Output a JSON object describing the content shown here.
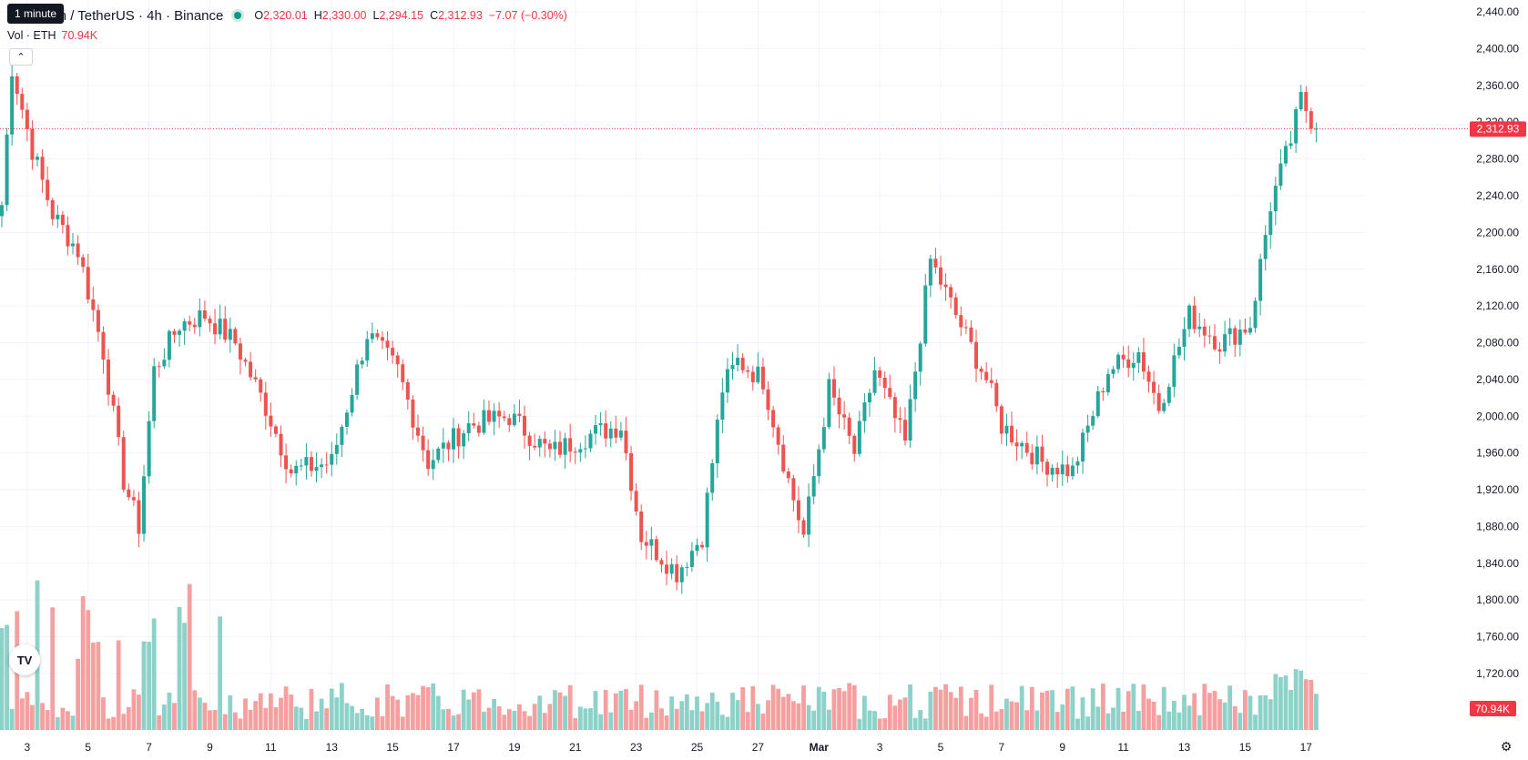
{
  "legend": {
    "tooltip": "1 minute",
    "symbol": "Ethereum / TetherUS · 4h · Binance",
    "status_color": "#089981",
    "open_label": "O",
    "open": "2,320.01",
    "high_label": "H",
    "high": "2,330.00",
    "low_label": "L",
    "low": "2,294.15",
    "close_label": "C",
    "close": "2,312.93",
    "change": "−7.07 (−0.30%)"
  },
  "volume_legend": {
    "label": "Vol · ETH",
    "value": "70.94K"
  },
  "price_badge": "2,312.93",
  "volume_badge": "70.94K",
  "icons": {
    "collapse": "chevron-up-icon",
    "logo": "tradingview-logo",
    "settings": "settings-icon"
  },
  "colors": {
    "up": "#26a69a",
    "down": "#ef5350",
    "vol_up": "#8ed1c8",
    "vol_down": "#f5a0a0",
    "last_price": "#f23645"
  },
  "chart_data": {
    "type": "candlestick",
    "symbol": "Ethereum / TetherUS",
    "interval": "4h",
    "exchange": "Binance",
    "y_axis": {
      "ticks": [
        "2,440.00",
        "2,400.00",
        "2,360.00",
        "2,320.00",
        "2,280.00",
        "2,240.00",
        "2,200.00",
        "2,160.00",
        "2,120.00",
        "2,080.00",
        "2,040.00",
        "2,000.00",
        "1,960.00",
        "1,920.00",
        "1,880.00",
        "1,840.00",
        "1,800.00",
        "1,760.00",
        "1,720.00"
      ],
      "tick_values": [
        2440,
        2400,
        2360,
        2320,
        2280,
        2240,
        2200,
        2160,
        2120,
        2080,
        2040,
        2000,
        1960,
        1920,
        1880,
        1840,
        1800,
        1760,
        1720
      ],
      "range": [
        1708,
        2453
      ],
      "last_price": 2312.93
    },
    "x_axis": {
      "labels": [
        "3",
        "5",
        "7",
        "9",
        "11",
        "13",
        "15",
        "17",
        "19",
        "21",
        "23",
        "25",
        "27",
        "Mar",
        "3",
        "5",
        "7",
        "9",
        "11",
        "13",
        "15",
        "17"
      ],
      "label_index": [
        5,
        17,
        29,
        41,
        53,
        65,
        77,
        89,
        101,
        113,
        125,
        137,
        149,
        161,
        173,
        185,
        197,
        209,
        221,
        233,
        245,
        257
      ]
    },
    "key_prices": [
      {
        "day_index": 0,
        "close": 2230
      },
      {
        "day_index": 2,
        "close": 2380
      },
      {
        "day_index": 6,
        "close": 2290
      },
      {
        "day_index": 10,
        "close": 2220
      },
      {
        "day_index": 15,
        "close": 2180
      },
      {
        "day_index": 20,
        "close": 2070
      },
      {
        "day_index": 24,
        "close": 1930
      },
      {
        "day_index": 27,
        "close": 1880
      },
      {
        "day_index": 30,
        "close": 2050
      },
      {
        "day_index": 35,
        "close": 2100
      },
      {
        "day_index": 40,
        "close": 2110
      },
      {
        "day_index": 46,
        "close": 2080
      },
      {
        "day_index": 52,
        "close": 2010
      },
      {
        "day_index": 57,
        "close": 1940
      },
      {
        "day_index": 65,
        "close": 1950
      },
      {
        "day_index": 72,
        "close": 2090
      },
      {
        "day_index": 78,
        "close": 2050
      },
      {
        "day_index": 84,
        "close": 1950
      },
      {
        "day_index": 92,
        "close": 1990
      },
      {
        "day_index": 100,
        "close": 2000
      },
      {
        "day_index": 108,
        "close": 1960
      },
      {
        "day_index": 116,
        "close": 1980
      },
      {
        "day_index": 122,
        "close": 1990
      },
      {
        "day_index": 126,
        "close": 1870
      },
      {
        "day_index": 133,
        "close": 1830
      },
      {
        "day_index": 138,
        "close": 1870
      },
      {
        "day_index": 142,
        "close": 2030
      },
      {
        "day_index": 145,
        "close": 2060
      },
      {
        "day_index": 150,
        "close": 2040
      },
      {
        "day_index": 155,
        "close": 1930
      },
      {
        "day_index": 158,
        "close": 1870
      },
      {
        "day_index": 163,
        "close": 2030
      },
      {
        "day_index": 168,
        "close": 1960
      },
      {
        "day_index": 172,
        "close": 2050
      },
      {
        "day_index": 178,
        "close": 1970
      },
      {
        "day_index": 183,
        "close": 2170
      },
      {
        "day_index": 188,
        "close": 2110
      },
      {
        "day_index": 194,
        "close": 2040
      },
      {
        "day_index": 197,
        "close": 1990
      },
      {
        "day_index": 205,
        "close": 1950
      },
      {
        "day_index": 211,
        "close": 1940
      },
      {
        "day_index": 218,
        "close": 2050
      },
      {
        "day_index": 224,
        "close": 2070
      },
      {
        "day_index": 228,
        "close": 2010
      },
      {
        "day_index": 234,
        "close": 2110
      },
      {
        "day_index": 240,
        "close": 2080
      },
      {
        "day_index": 246,
        "close": 2100
      },
      {
        "day_index": 250,
        "close": 2230
      },
      {
        "day_index": 254,
        "close": 2300
      },
      {
        "day_index": 256,
        "close": 2345
      },
      {
        "day_index": 259,
        "close": 2313
      }
    ]
  }
}
